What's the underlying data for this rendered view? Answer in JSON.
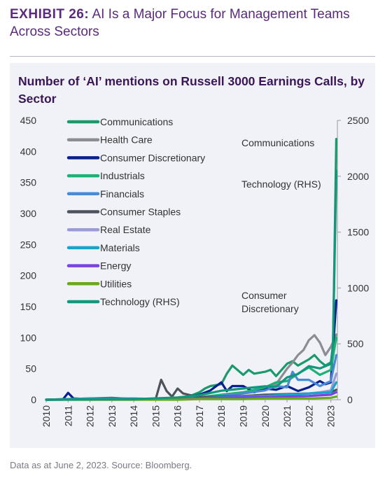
{
  "header": {
    "exhibit_label": "EXHIBIT 26:",
    "exhibit_title": "AI Is a Major Focus for Management Teams Across Sectors"
  },
  "footnote": "Data as at June 2, 2023. Source: Bloomberg.",
  "chart_data": {
    "type": "line",
    "title": "Number of ‘AI’ mentions on Russell 3000 Earnings Calls, by Sector",
    "x_ticks": [
      "2010",
      "2011",
      "2012",
      "2013",
      "2014",
      "2015",
      "2016",
      "2017",
      "2018",
      "2019",
      "2020",
      "2021",
      "2022",
      "2023"
    ],
    "x_range": [
      2010,
      2023.3
    ],
    "y_left": {
      "range": [
        0,
        450
      ],
      "ticks": [
        0,
        50,
        100,
        150,
        200,
        250,
        300,
        350,
        400,
        450
      ]
    },
    "y_right": {
      "range": [
        0,
        2500
      ],
      "ticks": [
        0,
        500,
        1000,
        1500,
        2000,
        2500
      ]
    },
    "grid": false,
    "legend": "top-left",
    "annotations": [
      {
        "text": "Communications",
        "series": "Communications"
      },
      {
        "text": "Technology (RHS)",
        "series": "Technology (RHS)"
      },
      {
        "text": "Consumer",
        "series": "Consumer Discretionary"
      },
      {
        "text": "Discretionary",
        "series": "Consumer Discretionary"
      }
    ],
    "series": [
      {
        "name": "Communications",
        "color": "#1a9a6b",
        "axis": "left",
        "x": [
          2010,
          2014,
          2016,
          2016.5,
          2017,
          2017.25,
          2017.5,
          2018,
          2018.25,
          2018.5,
          2019,
          2019.25,
          2019.5,
          2020,
          2020.25,
          2020.5,
          2021,
          2021.25,
          2021.5,
          2022,
          2022.25,
          2022.5,
          2022.75,
          2023,
          2023.1,
          2023.25
        ],
        "y": [
          0,
          1,
          2,
          5,
          12,
          18,
          22,
          25,
          42,
          55,
          40,
          48,
          42,
          45,
          48,
          38,
          58,
          62,
          55,
          65,
          72,
          62,
          55,
          60,
          80,
          420
        ]
      },
      {
        "name": "Health Care",
        "color": "#8c8c93",
        "axis": "left",
        "x": [
          2010,
          2014,
          2016,
          2017,
          2018,
          2019,
          2020,
          2020.5,
          2021,
          2021.25,
          2021.5,
          2021.75,
          2022,
          2022.25,
          2022.5,
          2022.75,
          2023,
          2023.25
        ],
        "y": [
          0,
          1,
          2,
          3,
          5,
          10,
          18,
          25,
          50,
          60,
          72,
          80,
          96,
          104,
          92,
          72,
          85,
          105
        ]
      },
      {
        "name": "Consumer Discretionary",
        "color": "#0a1f8f",
        "axis": "left",
        "x": [
          2010,
          2010.75,
          2011,
          2011.25,
          2012,
          2014,
          2016,
          2016.5,
          2017,
          2017.5,
          2018,
          2018.25,
          2018.5,
          2019,
          2019.5,
          2020,
          2020.5,
          2021,
          2021.5,
          2022,
          2022.5,
          2022.75,
          2023,
          2023.25
        ],
        "y": [
          0,
          0,
          11,
          2,
          1,
          1,
          2,
          5,
          8,
          15,
          28,
          14,
          22,
          22,
          12,
          18,
          16,
          22,
          14,
          20,
          30,
          25,
          28,
          160
        ]
      },
      {
        "name": "Industrials",
        "color": "#1fb076",
        "axis": "left",
        "x": [
          2010,
          2014,
          2016,
          2017,
          2018,
          2019,
          2020,
          2020.5,
          2021,
          2021.5,
          2022,
          2022.5,
          2023,
          2023.25
        ],
        "y": [
          0,
          1,
          2,
          4,
          8,
          12,
          20,
          28,
          30,
          42,
          52,
          40,
          48,
          100
        ]
      },
      {
        "name": "Financials",
        "color": "#4a88d8",
        "axis": "left",
        "x": [
          2010,
          2014,
          2016,
          2017,
          2018,
          2019,
          2020,
          2020.5,
          2021,
          2021.25,
          2021.5,
          2022,
          2022.5,
          2023,
          2023.25
        ],
        "y": [
          0,
          1,
          1,
          3,
          6,
          10,
          15,
          22,
          20,
          45,
          32,
          32,
          22,
          30,
          72
        ]
      },
      {
        "name": "Consumer Staples",
        "color": "#4d535a",
        "axis": "left",
        "x": [
          2010,
          2013,
          2014,
          2015,
          2015.25,
          2015.5,
          2015.75,
          2016,
          2016.25,
          2016.5,
          2017,
          2018,
          2019,
          2020,
          2021,
          2022,
          2023,
          2023.25
        ],
        "y": [
          0,
          3,
          1,
          1,
          32,
          14,
          5,
          18,
          10,
          8,
          4,
          5,
          6,
          8,
          9,
          10,
          12,
          16
        ]
      },
      {
        "name": "Real Estate",
        "color": "#9a9ad8",
        "axis": "left",
        "x": [
          2010,
          2014,
          2016,
          2017,
          2018,
          2019,
          2020,
          2021,
          2022,
          2022.5,
          2023,
          2023.25
        ],
        "y": [
          0,
          0,
          1,
          2,
          3,
          5,
          6,
          8,
          10,
          12,
          15,
          42
        ]
      },
      {
        "name": "Materials",
        "color": "#1aa3c8",
        "axis": "left",
        "x": [
          2010,
          2012,
          2014,
          2015,
          2016,
          2017,
          2018,
          2019,
          2020,
          2021,
          2022,
          2023,
          2023.25
        ],
        "y": [
          0,
          2,
          2,
          1,
          2,
          2,
          4,
          5,
          6,
          8,
          10,
          12,
          28
        ]
      },
      {
        "name": "Energy",
        "color": "#7a42e0",
        "axis": "left",
        "x": [
          2010,
          2014,
          2016,
          2017,
          2018,
          2019,
          2020,
          2021,
          2022,
          2023,
          2023.25
        ],
        "y": [
          0,
          1,
          1,
          2,
          3,
          4,
          4,
          5,
          6,
          8,
          12
        ]
      },
      {
        "name": "Utilities",
        "color": "#6aa81e",
        "axis": "left",
        "x": [
          2010,
          2014,
          2016,
          2017,
          2018,
          2019,
          2020,
          2021,
          2022,
          2023,
          2023.25
        ],
        "y": [
          0,
          0,
          0,
          1,
          1,
          1,
          2,
          2,
          2,
          3,
          5
        ]
      },
      {
        "name": "Technology (RHS)",
        "color": "#12977a",
        "axis": "right",
        "x": [
          2010,
          2014,
          2016,
          2017,
          2018,
          2018.5,
          2019,
          2019.5,
          2020,
          2020.5,
          2021,
          2021.5,
          2022,
          2022.5,
          2023,
          2023.1,
          2023.25
        ],
        "y": [
          0,
          5,
          20,
          40,
          80,
          90,
          100,
          110,
          120,
          115,
          200,
          230,
          300,
          280,
          320,
          500,
          2050
        ]
      }
    ]
  }
}
